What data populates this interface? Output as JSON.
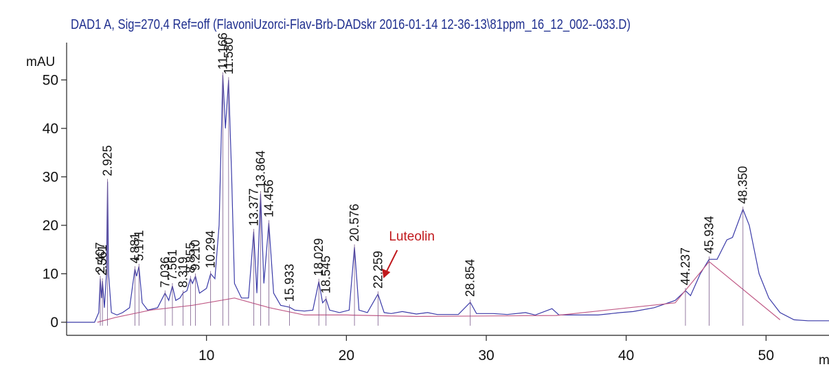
{
  "chart_data": {
    "type": "line",
    "title": "DAD1 A, Sig=270,4 Ref=off (FlavoniUzorci-Flav-Brb-DADskr 2016-01-14 12-36-13\\81ppm_16_12_002--033.D)",
    "y_label": "mAU",
    "x_label": "min",
    "xlim": [
      0,
      54.5
    ],
    "ylim": [
      -2.7,
      57.7
    ],
    "xticks": [
      10,
      20,
      30,
      40,
      50
    ],
    "yticks": [
      0,
      10,
      20,
      30,
      40,
      50
    ],
    "series": [
      {
        "color": "#3a3aa8",
        "x": [
          0,
          2.0,
          2.3,
          2.407,
          2.5,
          2.561,
          2.7,
          2.85,
          2.925,
          3.0,
          3.2,
          3.6,
          4.0,
          4.5,
          4.881,
          5.0,
          5.171,
          5.4,
          5.8,
          6.5,
          7.036,
          7.3,
          7.561,
          7.8,
          8.1,
          8.319,
          8.6,
          8.855,
          9.0,
          9.21,
          9.5,
          10.0,
          10.294,
          10.6,
          10.9,
          11.166,
          11.35,
          11.58,
          11.8,
          12.0,
          12.5,
          13.0,
          13.377,
          13.6,
          13.864,
          14.1,
          14.456,
          14.8,
          15.3,
          15.933,
          16.3,
          17.0,
          17.6,
          18.029,
          18.3,
          18.545,
          18.8,
          19.5,
          20.2,
          20.576,
          20.9,
          21.5,
          22.259,
          22.7,
          23.2,
          24,
          25,
          25.8,
          26.5,
          28,
          28.854,
          29.3,
          30.5,
          31.5,
          32.8,
          33.5,
          34.7,
          35.2,
          36,
          38,
          39.6,
          40.5,
          42,
          43.5,
          44.237,
          44.6,
          45.3,
          45.934,
          46.5,
          47.2,
          47.6,
          48.35,
          48.8,
          49.5,
          50.2,
          51,
          52,
          53,
          54.5
        ],
        "values": [
          0,
          0,
          2,
          9,
          5,
          8.5,
          3,
          10,
          29,
          10,
          2,
          1.5,
          2,
          3,
          11,
          9.5,
          11.5,
          4,
          2.5,
          3,
          6,
          4.5,
          7.5,
          4.5,
          5,
          6,
          6.5,
          9,
          8,
          9.5,
          6,
          7,
          10,
          9,
          20,
          51,
          40,
          50,
          30,
          8,
          5,
          5,
          18.7,
          6,
          26.5,
          8,
          20.5,
          6,
          3.5,
          3.1,
          2.5,
          2.3,
          2.5,
          8.4,
          4,
          4.8,
          2.5,
          2,
          2.5,
          15.5,
          2.5,
          2,
          5.8,
          2,
          1.8,
          2.2,
          1.7,
          2,
          1.6,
          1.6,
          4.1,
          1.8,
          1.8,
          1.6,
          2.0,
          1.5,
          2.8,
          1.5,
          1.5,
          1.5,
          2,
          2.2,
          3,
          4.5,
          6.5,
          5.5,
          10,
          13,
          13,
          17,
          17.5,
          23.3,
          20,
          10,
          5,
          2,
          0.5,
          0.3,
          0.3
        ]
      },
      {
        "color": "#c05a86",
        "x": [
          2.2,
          3.5,
          6,
          9,
          12,
          14.5,
          17,
          20,
          25,
          30,
          35,
          43.5,
          45.934,
          51
        ],
        "values": [
          0,
          1,
          2.5,
          3.5,
          5,
          3,
          1.5,
          1.5,
          1.2,
          1.3,
          1.4,
          4,
          12.5,
          0.5
        ]
      }
    ],
    "peaks": [
      {
        "value": 2.407,
        "label": "2.407"
      },
      {
        "value": 2.561,
        "label": "2.561"
      },
      {
        "value": 2.925,
        "label": "2.925"
      },
      {
        "value": 4.881,
        "label": "4.881"
      },
      {
        "value": 5.171,
        "label": "5.171"
      },
      {
        "value": 7.036,
        "label": "7.036"
      },
      {
        "value": 7.561,
        "label": "7.561"
      },
      {
        "value": 8.319,
        "label": "8.319"
      },
      {
        "value": 8.855,
        "label": "8.855"
      },
      {
        "value": 9.21,
        "label": "9.210"
      },
      {
        "value": 10.294,
        "label": "10.294"
      },
      {
        "value": 11.166,
        "label": "11.166"
      },
      {
        "value": 11.58,
        "label": "11.580"
      },
      {
        "value": 13.377,
        "label": "13.377"
      },
      {
        "value": 13.864,
        "label": "13.864"
      },
      {
        "value": 14.456,
        "label": "14.456"
      },
      {
        "value": 15.933,
        "label": "15.933"
      },
      {
        "value": 18.029,
        "label": "18.029"
      },
      {
        "value": 18.545,
        "label": "18.545"
      },
      {
        "value": 20.576,
        "label": "20.576"
      },
      {
        "value": 22.259,
        "label": "22.259"
      },
      {
        "value": 28.854,
        "label": "28.854"
      },
      {
        "value": 44.237,
        "label": "44.237"
      },
      {
        "value": 45.934,
        "label": "45.934"
      },
      {
        "value": 48.35,
        "label": "48.350"
      }
    ],
    "annotation": {
      "text": "Luteolin",
      "color": "#c0181c",
      "target": 22.259
    }
  }
}
